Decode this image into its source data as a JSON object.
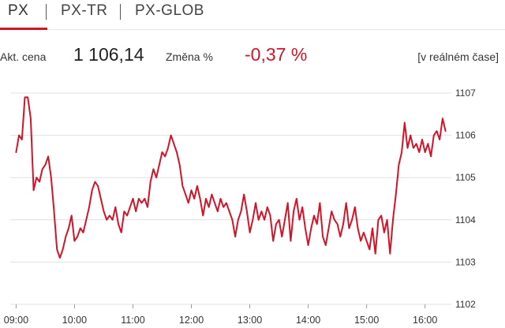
{
  "tabs": [
    {
      "label": "PX",
      "active": true
    },
    {
      "label": "PX-TR",
      "active": false
    },
    {
      "label": "PX-GLOB",
      "active": false
    }
  ],
  "quote": {
    "price_label": "Akt. cena",
    "price_value": "1 106,14",
    "change_label": "Změna %",
    "change_value": "-0,37 %",
    "status": "[v reálném čase]"
  },
  "colors": {
    "accent": "#d21429",
    "line": "#d21429",
    "grid": "#e0e0e0",
    "text": "#333333"
  },
  "chart_data": {
    "type": "line",
    "title": "",
    "xlabel": "",
    "ylabel": "",
    "x_ticks": [
      "09:00",
      "10:00",
      "11:00",
      "12:00",
      "13:00",
      "14:00",
      "15:00",
      "16:00"
    ],
    "y_ticks": [
      1102,
      1103,
      1104,
      1105,
      1106,
      1107
    ],
    "ylim": [
      1102,
      1107
    ],
    "grid": true,
    "y_axis_side": "right",
    "series": [
      {
        "values": [
          [
            "09:00",
            1105.6
          ],
          [
            "09:03",
            1106.0
          ],
          [
            "09:06",
            1105.9
          ],
          [
            "09:09",
            1106.9
          ],
          [
            "09:12",
            1106.9
          ],
          [
            "09:15",
            1106.4
          ],
          [
            "09:18",
            1104.7
          ],
          [
            "09:21",
            1105.0
          ],
          [
            "09:24",
            1104.9
          ],
          [
            "09:27",
            1105.2
          ],
          [
            "09:30",
            1105.3
          ],
          [
            "09:33",
            1105.5
          ],
          [
            "09:36",
            1105.0
          ],
          [
            "09:39",
            1104.2
          ],
          [
            "09:42",
            1103.3
          ],
          [
            "09:45",
            1103.1
          ],
          [
            "09:48",
            1103.3
          ],
          [
            "09:51",
            1103.6
          ],
          [
            "09:54",
            1103.8
          ],
          [
            "09:57",
            1104.1
          ],
          [
            "10:00",
            1103.5
          ],
          [
            "10:03",
            1103.6
          ],
          [
            "10:06",
            1103.8
          ],
          [
            "10:09",
            1103.7
          ],
          [
            "10:12",
            1104.0
          ],
          [
            "10:15",
            1104.3
          ],
          [
            "10:18",
            1104.7
          ],
          [
            "10:21",
            1104.9
          ],
          [
            "10:24",
            1104.8
          ],
          [
            "10:27",
            1104.5
          ],
          [
            "10:30",
            1104.2
          ],
          [
            "10:33",
            1104.0
          ],
          [
            "10:36",
            1104.1
          ],
          [
            "10:39",
            1104.0
          ],
          [
            "10:42",
            1104.3
          ],
          [
            "10:45",
            1103.9
          ],
          [
            "10:48",
            1103.7
          ],
          [
            "10:51",
            1104.2
          ],
          [
            "10:54",
            1104.1
          ],
          [
            "10:57",
            1104.3
          ],
          [
            "11:00",
            1104.5
          ],
          [
            "11:03",
            1104.2
          ],
          [
            "11:06",
            1104.5
          ],
          [
            "11:09",
            1104.4
          ],
          [
            "11:12",
            1104.5
          ],
          [
            "11:15",
            1104.3
          ],
          [
            "11:18",
            1104.9
          ],
          [
            "11:21",
            1105.2
          ],
          [
            "11:24",
            1105.0
          ],
          [
            "11:27",
            1105.3
          ],
          [
            "11:30",
            1105.6
          ],
          [
            "11:33",
            1105.5
          ],
          [
            "11:36",
            1105.7
          ],
          [
            "11:39",
            1106.0
          ],
          [
            "11:42",
            1105.8
          ],
          [
            "11:45",
            1105.6
          ],
          [
            "11:48",
            1105.3
          ],
          [
            "11:51",
            1104.8
          ],
          [
            "11:54",
            1104.6
          ],
          [
            "11:57",
            1104.4
          ],
          [
            "12:00",
            1104.7
          ],
          [
            "12:03",
            1104.5
          ],
          [
            "12:06",
            1104.8
          ],
          [
            "12:09",
            1104.5
          ],
          [
            "12:12",
            1104.1
          ],
          [
            "12:15",
            1104.5
          ],
          [
            "12:18",
            1104.3
          ],
          [
            "12:21",
            1104.6
          ],
          [
            "12:24",
            1104.4
          ],
          [
            "12:27",
            1104.2
          ],
          [
            "12:30",
            1104.5
          ],
          [
            "12:33",
            1104.3
          ],
          [
            "12:36",
            1104.4
          ],
          [
            "12:39",
            1104.2
          ],
          [
            "12:42",
            1104.0
          ],
          [
            "12:45",
            1103.6
          ],
          [
            "12:48",
            1104.0
          ],
          [
            "12:51",
            1104.2
          ],
          [
            "12:54",
            1104.6
          ],
          [
            "12:57",
            1104.2
          ],
          [
            "13:00",
            1103.7
          ],
          [
            "13:03",
            1104.0
          ],
          [
            "13:06",
            1104.4
          ],
          [
            "13:09",
            1104.0
          ],
          [
            "13:12",
            1104.2
          ],
          [
            "13:15",
            1104.0
          ],
          [
            "13:18",
            1104.3
          ],
          [
            "13:21",
            1104.1
          ],
          [
            "13:24",
            1103.5
          ],
          [
            "13:27",
            1103.9
          ],
          [
            "13:30",
            1104.0
          ],
          [
            "13:33",
            1103.6
          ],
          [
            "13:36",
            1104.0
          ],
          [
            "13:39",
            1104.4
          ],
          [
            "13:42",
            1103.5
          ],
          [
            "13:45",
            1104.2
          ],
          [
            "13:48",
            1104.5
          ],
          [
            "13:51",
            1104.0
          ],
          [
            "13:54",
            1104.3
          ],
          [
            "13:57",
            1103.8
          ],
          [
            "14:00",
            1103.4
          ],
          [
            "14:03",
            1103.8
          ],
          [
            "14:06",
            1104.1
          ],
          [
            "14:09",
            1103.9
          ],
          [
            "14:12",
            1104.4
          ],
          [
            "14:15",
            1103.6
          ],
          [
            "14:18",
            1103.4
          ],
          [
            "14:21",
            1103.8
          ],
          [
            "14:24",
            1104.2
          ],
          [
            "14:27",
            1104.0
          ],
          [
            "14:30",
            1103.9
          ],
          [
            "14:33",
            1103.6
          ],
          [
            "14:36",
            1103.9
          ],
          [
            "14:39",
            1104.4
          ],
          [
            "14:42",
            1103.8
          ],
          [
            "14:45",
            1104.0
          ],
          [
            "14:48",
            1104.3
          ],
          [
            "14:51",
            1103.8
          ],
          [
            "14:54",
            1103.5
          ],
          [
            "14:57",
            1103.7
          ],
          [
            "15:00",
            1103.5
          ],
          [
            "15:03",
            1103.3
          ],
          [
            "15:06",
            1103.8
          ],
          [
            "15:09",
            1103.2
          ],
          [
            "15:12",
            1104.0
          ],
          [
            "15:15",
            1104.1
          ],
          [
            "15:18",
            1103.7
          ],
          [
            "15:21",
            1104.0
          ],
          [
            "15:24",
            1103.2
          ],
          [
            "15:27",
            1104.0
          ],
          [
            "15:30",
            1104.6
          ],
          [
            "15:33",
            1105.3
          ],
          [
            "15:36",
            1105.6
          ],
          [
            "15:39",
            1106.3
          ],
          [
            "15:42",
            1105.7
          ],
          [
            "15:45",
            1106.0
          ],
          [
            "15:48",
            1105.7
          ],
          [
            "15:51",
            1105.8
          ],
          [
            "15:54",
            1105.6
          ],
          [
            "15:57",
            1105.9
          ],
          [
            "16:00",
            1105.6
          ],
          [
            "16:03",
            1105.8
          ],
          [
            "16:06",
            1105.5
          ],
          [
            "16:09",
            1106.0
          ],
          [
            "16:12",
            1106.1
          ],
          [
            "16:15",
            1105.9
          ],
          [
            "16:18",
            1106.4
          ],
          [
            "16:21",
            1106.1
          ]
        ]
      }
    ]
  }
}
